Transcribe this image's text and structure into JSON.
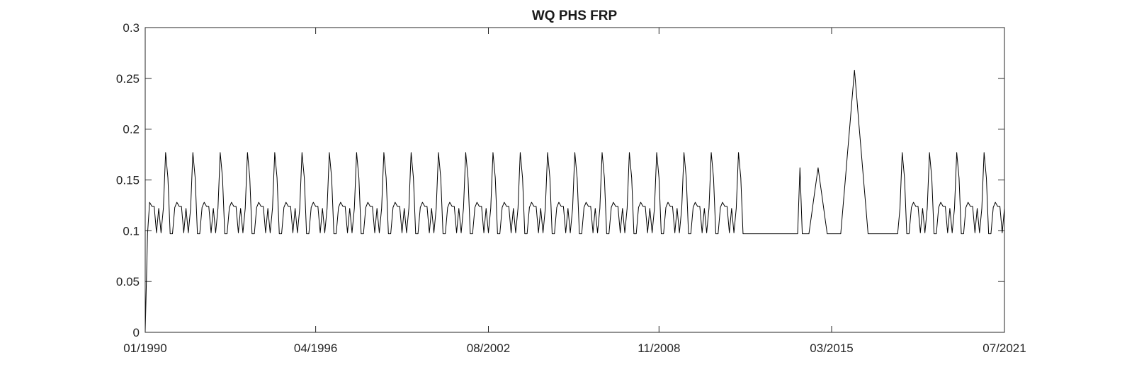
{
  "chart_data": {
    "type": "line",
    "title": "WQ PHS FRP",
    "xlabel": "",
    "ylabel": "",
    "x_type": "date",
    "xlim": [
      "1990-01-01",
      "2021-07-01"
    ],
    "ylim": [
      0,
      0.3
    ],
    "yticks": [
      0,
      0.05,
      0.1,
      0.15,
      0.2,
      0.25,
      0.3
    ],
    "ytick_labels": [
      "0",
      "0.05",
      "0.1",
      "0.15",
      "0.2",
      "0.25",
      "0.3"
    ],
    "xticks": [
      "1990-01-01",
      "1996-04-01",
      "2002-08-01",
      "2008-11-01",
      "2015-03-01",
      "2021-07-01"
    ],
    "xtick_labels": [
      "01/1990",
      "04/1996",
      "08/2002",
      "11/2008",
      "03/2015",
      "07/2021"
    ],
    "grid": false,
    "line_color": "#000000",
    "season_pattern": {
      "months": [
        1,
        2,
        3,
        4,
        5,
        6,
        7,
        8,
        9,
        10,
        11,
        12
      ],
      "values": [
        0.097,
        0.123,
        0.128,
        0.124,
        0.124,
        0.098,
        0.122,
        0.098,
        0.122,
        0.177,
        0.152,
        0.097
      ]
    },
    "series": [
      {
        "start": "1990-01-01",
        "frequency": "monthly",
        "repeat_pattern_years": [
          1990,
          2011
        ],
        "flat_segments": [
          {
            "from": "2012-01-01",
            "to": "2013-12-01",
            "value": 0.097
          },
          {
            "from": "2016-07-01",
            "to": "2017-08-01",
            "value": 0.097
          }
        ],
        "anomalies": [
          {
            "date": "1990-01-01",
            "value": 0.0
          },
          {
            "date": "1990-02-01",
            "value": 0.097
          },
          {
            "date": "2013-12-01",
            "value": 0.097
          },
          {
            "date": "2014-01-01",
            "value": 0.162
          },
          {
            "date": "2014-02-01",
            "value": 0.097
          },
          {
            "date": "2014-05-01",
            "value": 0.097
          },
          {
            "date": "2014-09-01",
            "value": 0.162
          },
          {
            "date": "2015-01-01",
            "value": 0.097
          },
          {
            "date": "2015-07-01",
            "value": 0.097
          },
          {
            "date": "2016-01-01",
            "value": 0.258
          },
          {
            "date": "2016-07-01",
            "value": 0.097
          },
          {
            "date": "2017-08-01",
            "value": 0.097
          }
        ],
        "resume_pattern_from": "2017-09-01",
        "end": "2021-07-01"
      }
    ]
  }
}
